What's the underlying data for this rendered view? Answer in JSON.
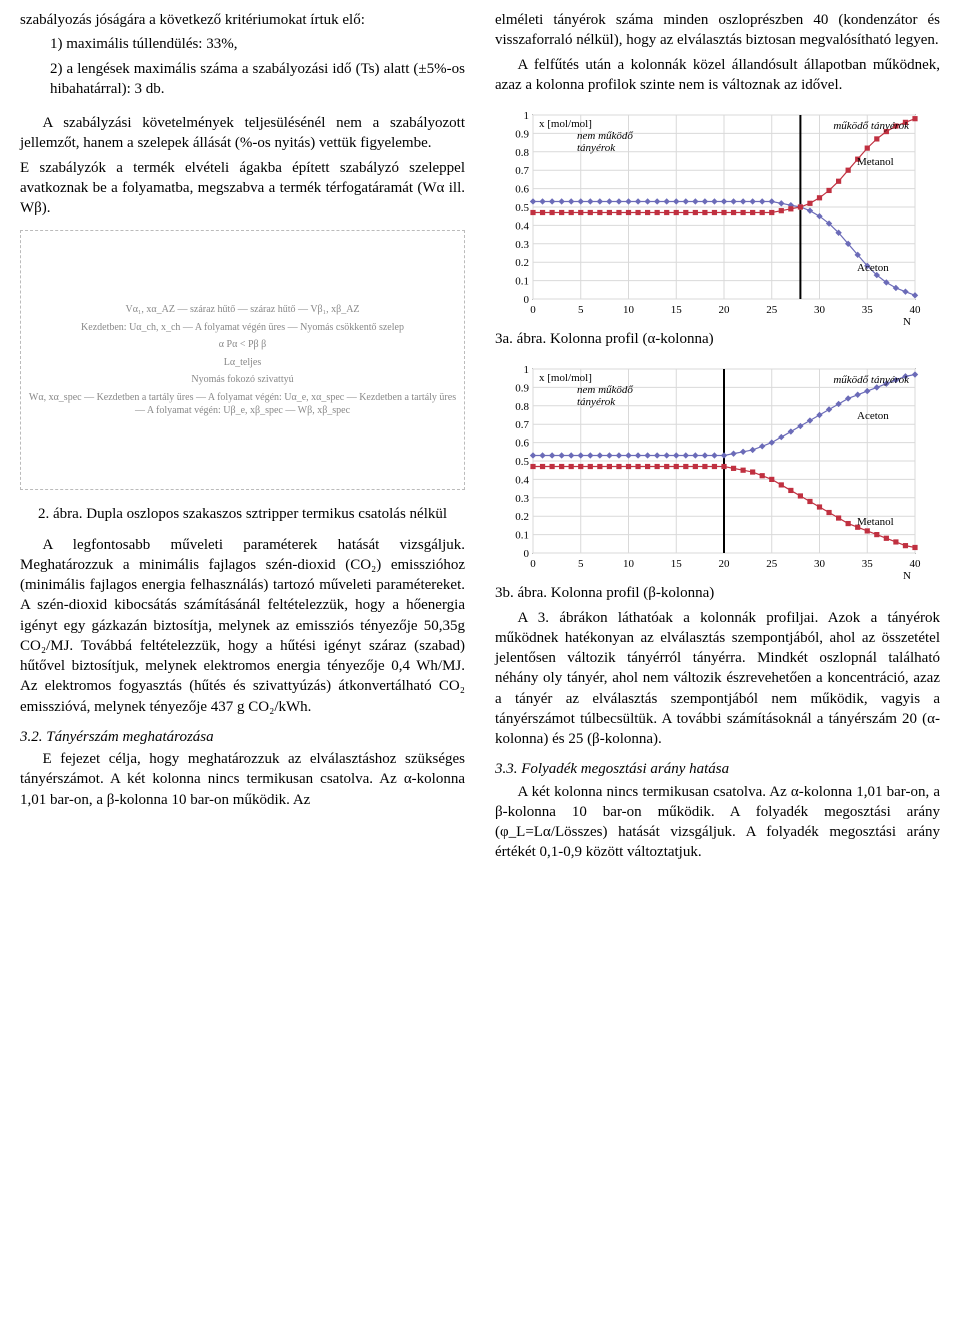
{
  "left": {
    "p1": "szabályozás jóságára a következő kritériumokat írtuk elő:",
    "li1": "1) maximális túllendülés: 33%,",
    "li2": "2) a lengések maximális száma a szabályozási idő (Ts) alatt (±5%-os hibahatárral): 3 db.",
    "p2": "A szabályzási követelmények teljesülésénél nem a szabályozott jellemzőt, hanem a szelepek állását (%-os nyitás) vettük figyelembe.",
    "p3": "E szabályzók a termék elvételi ágakba épített szabályzó szeleppel avatkoznak be a folyamatba, megszabva a termék térfogatáramát (Wα ill. Wβ).",
    "schematic": {
      "lines": [
        "Vα₁, xα_AZ — száraz hűtő — száraz hűtő — Vβ₁, xβ_AZ",
        "Kezdetben: Uα_ch, x_ch — A folyamat végén üres — Nyomás csökkentő szelep",
        "α   Pα < Pβ   β",
        "Lα_teljes",
        "Nyomás fokozó szivattyú",
        "Wα, xα_spec — Kezdetben a tartály üres — A folyamat végén: Uα_e, xα_spec — Kezdetben a tartály üres — A folyamat végén: Uβ_e, xβ_spec — Wβ, xβ_spec"
      ]
    },
    "fig2_caption": "2. ábra. Dupla oszlopos szakaszos sztripper termikus csatolás nélkül",
    "p4": "A legfontosabb műveleti paraméterek hatását vizsgáljuk. Meghatározzuk a minimális fajlagos szén-dioxid (CO₂) emisszióhoz (minimális fajlagos energia felhasználás) tartozó műveleti paramétereket. A szén-dioxid kibocsátás számításánál feltételezzük, hogy a hőenergia igényt egy gázkazán biztosítja, melynek az emissziós tényezője 50,35g CO₂/MJ. Továbbá feltételezzük, hogy a hűtési igényt száraz (szabad) hűtővel biztosítjuk, melynek elektromos energia tényezője 0,4 Wh/MJ. Az elektromos fogyasztás (hűtés és szivattyúzás) átkonvertálható CO₂ emisszióvá, melynek tényezője 437 g CO₂/kWh.",
    "sec32_title": "3.2. Tányérszám meghatározása",
    "p5": "E fejezet célja, hogy meghatározzuk az elválasztáshoz szükséges tányérszámot. A két kolonna nincs termikusan csatolva. Az α-kolonna 1,01 bar-on, a β-kolonna 10 bar-on működik. Az"
  },
  "right": {
    "p1": "elméleti tányérok száma minden oszloprészben 40 (kondenzátor és visszaforraló nélkül), hogy az elválasztás biztosan megvalósítható legyen.",
    "p2": "A felfűtés után a kolonnák közel állandósult állapotban működnek, azaz a kolonna profilok szinte nem is változnak az idővel.",
    "fig3a_caption": "3a. ábra. Kolonna profil (α-kolonna)",
    "fig3b_caption": "3b. ábra. Kolonna profil (β-kolonna)",
    "p3": "A 3. ábrákon láthatóak a kolonnák profiljai. Azok a tányérok működnek hatékonyan az elválasztás szempontjából, ahol az összetétel jelentősen változik tányérról tányérra. Mindkét oszlopnál található néhány oly tányér, ahol nem változik észrevehetően a koncentráció, azaz a tányér az elválasztás szempontjából nem működik, vagyis a tányérszámot túlbecsültük. A további számításoknál a tányérszám 20 (α-kolonna) és 25 (β-kolonna).",
    "sec33_title": "3.3. Folyadék megosztási arány hatása",
    "p4": "A két kolonna nincs termikusan csatolva. Az α-kolonna 1,01 bar-on, a β-kolonna 10 bar-on működik. A folyadék megosztási arány (φ_L=Lα/Lösszes) hatását vizsgáljuk. A folyadék megosztási arány értékét 0,1-0,9 között változtatjuk."
  },
  "chart3a": {
    "ylabel": "x [mol/mol]",
    "annot_left": "nem működő\ntányérok",
    "annot_right": "működő tányérok",
    "label_top": "Metanol",
    "label_bot": "Aceton",
    "xlabel": "N",
    "xticks": [
      0,
      5,
      10,
      15,
      20,
      25,
      30,
      35,
      40
    ],
    "yticks": [
      0,
      0.1,
      0.2,
      0.3,
      0.4,
      0.5,
      0.6,
      0.7,
      0.8,
      0.9,
      1
    ],
    "vline_x": 28,
    "colors": {
      "series_blue": "#6b6bb8",
      "series_red": "#c03040",
      "grid": "#d9d9d9",
      "axis": "#000000",
      "bg": "#ffffff"
    },
    "blue": [
      [
        0,
        0.53
      ],
      [
        1,
        0.53
      ],
      [
        2,
        0.53
      ],
      [
        3,
        0.53
      ],
      [
        4,
        0.53
      ],
      [
        5,
        0.53
      ],
      [
        6,
        0.53
      ],
      [
        7,
        0.53
      ],
      [
        8,
        0.53
      ],
      [
        9,
        0.53
      ],
      [
        10,
        0.53
      ],
      [
        11,
        0.53
      ],
      [
        12,
        0.53
      ],
      [
        13,
        0.53
      ],
      [
        14,
        0.53
      ],
      [
        15,
        0.53
      ],
      [
        16,
        0.53
      ],
      [
        17,
        0.53
      ],
      [
        18,
        0.53
      ],
      [
        19,
        0.53
      ],
      [
        20,
        0.53
      ],
      [
        21,
        0.53
      ],
      [
        22,
        0.53
      ],
      [
        23,
        0.53
      ],
      [
        24,
        0.53
      ],
      [
        25,
        0.53
      ],
      [
        26,
        0.52
      ],
      [
        27,
        0.51
      ],
      [
        28,
        0.5
      ],
      [
        29,
        0.48
      ],
      [
        30,
        0.45
      ],
      [
        31,
        0.41
      ],
      [
        32,
        0.36
      ],
      [
        33,
        0.3
      ],
      [
        34,
        0.24
      ],
      [
        35,
        0.18
      ],
      [
        36,
        0.13
      ],
      [
        37,
        0.09
      ],
      [
        38,
        0.06
      ],
      [
        39,
        0.04
      ],
      [
        40,
        0.02
      ]
    ],
    "red": [
      [
        0,
        0.47
      ],
      [
        1,
        0.47
      ],
      [
        2,
        0.47
      ],
      [
        3,
        0.47
      ],
      [
        4,
        0.47
      ],
      [
        5,
        0.47
      ],
      [
        6,
        0.47
      ],
      [
        7,
        0.47
      ],
      [
        8,
        0.47
      ],
      [
        9,
        0.47
      ],
      [
        10,
        0.47
      ],
      [
        11,
        0.47
      ],
      [
        12,
        0.47
      ],
      [
        13,
        0.47
      ],
      [
        14,
        0.47
      ],
      [
        15,
        0.47
      ],
      [
        16,
        0.47
      ],
      [
        17,
        0.47
      ],
      [
        18,
        0.47
      ],
      [
        19,
        0.47
      ],
      [
        20,
        0.47
      ],
      [
        21,
        0.47
      ],
      [
        22,
        0.47
      ],
      [
        23,
        0.47
      ],
      [
        24,
        0.47
      ],
      [
        25,
        0.47
      ],
      [
        26,
        0.48
      ],
      [
        27,
        0.49
      ],
      [
        28,
        0.5
      ],
      [
        29,
        0.52
      ],
      [
        30,
        0.55
      ],
      [
        31,
        0.59
      ],
      [
        32,
        0.64
      ],
      [
        33,
        0.7
      ],
      [
        34,
        0.76
      ],
      [
        35,
        0.82
      ],
      [
        36,
        0.87
      ],
      [
        37,
        0.91
      ],
      [
        38,
        0.94
      ],
      [
        39,
        0.96
      ],
      [
        40,
        0.98
      ]
    ]
  },
  "chart3b": {
    "ylabel": "x [mol/mol]",
    "annot_left": "nem működő\ntányérok",
    "annot_right": "működő tányérok",
    "label_top": "Aceton",
    "label_bot": "Metanol",
    "xlabel": "N",
    "xticks": [
      0,
      5,
      10,
      15,
      20,
      25,
      30,
      35,
      40
    ],
    "yticks": [
      0,
      0.1,
      0.2,
      0.3,
      0.4,
      0.5,
      0.6,
      0.7,
      0.8,
      0.9,
      1
    ],
    "vline_x": 20,
    "colors": {
      "series_blue": "#6b6bb8",
      "series_red": "#c03040",
      "grid": "#d9d9d9",
      "axis": "#000000",
      "bg": "#ffffff"
    },
    "blue": [
      [
        0,
        0.53
      ],
      [
        1,
        0.53
      ],
      [
        2,
        0.53
      ],
      [
        3,
        0.53
      ],
      [
        4,
        0.53
      ],
      [
        5,
        0.53
      ],
      [
        6,
        0.53
      ],
      [
        7,
        0.53
      ],
      [
        8,
        0.53
      ],
      [
        9,
        0.53
      ],
      [
        10,
        0.53
      ],
      [
        11,
        0.53
      ],
      [
        12,
        0.53
      ],
      [
        13,
        0.53
      ],
      [
        14,
        0.53
      ],
      [
        15,
        0.53
      ],
      [
        16,
        0.53
      ],
      [
        17,
        0.53
      ],
      [
        18,
        0.53
      ],
      [
        19,
        0.53
      ],
      [
        20,
        0.53
      ],
      [
        21,
        0.54
      ],
      [
        22,
        0.55
      ],
      [
        23,
        0.56
      ],
      [
        24,
        0.58
      ],
      [
        25,
        0.6
      ],
      [
        26,
        0.63
      ],
      [
        27,
        0.66
      ],
      [
        28,
        0.69
      ],
      [
        29,
        0.72
      ],
      [
        30,
        0.75
      ],
      [
        31,
        0.78
      ],
      [
        32,
        0.81
      ],
      [
        33,
        0.84
      ],
      [
        34,
        0.86
      ],
      [
        35,
        0.88
      ],
      [
        36,
        0.9
      ],
      [
        37,
        0.92
      ],
      [
        38,
        0.94
      ],
      [
        39,
        0.96
      ],
      [
        40,
        0.97
      ]
    ],
    "red": [
      [
        0,
        0.47
      ],
      [
        1,
        0.47
      ],
      [
        2,
        0.47
      ],
      [
        3,
        0.47
      ],
      [
        4,
        0.47
      ],
      [
        5,
        0.47
      ],
      [
        6,
        0.47
      ],
      [
        7,
        0.47
      ],
      [
        8,
        0.47
      ],
      [
        9,
        0.47
      ],
      [
        10,
        0.47
      ],
      [
        11,
        0.47
      ],
      [
        12,
        0.47
      ],
      [
        13,
        0.47
      ],
      [
        14,
        0.47
      ],
      [
        15,
        0.47
      ],
      [
        16,
        0.47
      ],
      [
        17,
        0.47
      ],
      [
        18,
        0.47
      ],
      [
        19,
        0.47
      ],
      [
        20,
        0.47
      ],
      [
        21,
        0.46
      ],
      [
        22,
        0.45
      ],
      [
        23,
        0.44
      ],
      [
        24,
        0.42
      ],
      [
        25,
        0.4
      ],
      [
        26,
        0.37
      ],
      [
        27,
        0.34
      ],
      [
        28,
        0.31
      ],
      [
        29,
        0.28
      ],
      [
        30,
        0.25
      ],
      [
        31,
        0.22
      ],
      [
        32,
        0.19
      ],
      [
        33,
        0.16
      ],
      [
        34,
        0.14
      ],
      [
        35,
        0.12
      ],
      [
        36,
        0.1
      ],
      [
        37,
        0.08
      ],
      [
        38,
        0.06
      ],
      [
        39,
        0.04
      ],
      [
        40,
        0.03
      ]
    ]
  }
}
